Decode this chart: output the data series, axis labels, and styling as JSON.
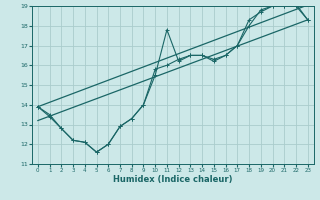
{
  "xlabel": "Humidex (Indice chaleur)",
  "xlim": [
    -0.5,
    23.5
  ],
  "ylim": [
    11,
    19
  ],
  "xticks": [
    0,
    1,
    2,
    3,
    4,
    5,
    6,
    7,
    8,
    9,
    10,
    11,
    12,
    13,
    14,
    15,
    16,
    17,
    18,
    19,
    20,
    21,
    22,
    23
  ],
  "yticks": [
    11,
    12,
    13,
    14,
    15,
    16,
    17,
    18,
    19
  ],
  "bg_color": "#cce8e8",
  "line_color": "#1a6666",
  "grid_color": "#aacccc",
  "series1_x": [
    0,
    1,
    2,
    3,
    4,
    5,
    6,
    7,
    8,
    9,
    10,
    11,
    12,
    13,
    14,
    15,
    16,
    17,
    18,
    19,
    20,
    21,
    22,
    23
  ],
  "series1_y": [
    13.9,
    13.5,
    12.8,
    12.2,
    12.1,
    11.6,
    12.0,
    12.9,
    13.3,
    14.0,
    15.5,
    17.8,
    16.2,
    16.5,
    16.5,
    16.3,
    16.5,
    17.0,
    18.0,
    18.8,
    19.0,
    19.0,
    19.0,
    18.3
  ],
  "series2_x": [
    0,
    1,
    2,
    3,
    4,
    5,
    6,
    7,
    8,
    9,
    10,
    11,
    12,
    13,
    14,
    15,
    16,
    17,
    18,
    19,
    20,
    21,
    22,
    23
  ],
  "series2_y": [
    13.9,
    13.4,
    12.8,
    12.2,
    12.1,
    11.6,
    12.0,
    12.9,
    13.3,
    14.0,
    15.8,
    16.0,
    16.3,
    16.5,
    16.5,
    16.2,
    16.5,
    17.0,
    18.3,
    18.7,
    19.0,
    19.0,
    19.1,
    18.3
  ],
  "trend1_x": [
    0,
    23
  ],
  "trend1_y": [
    13.2,
    18.3
  ],
  "trend2_x": [
    0,
    23
  ],
  "trend2_y": [
    13.9,
    19.05
  ]
}
